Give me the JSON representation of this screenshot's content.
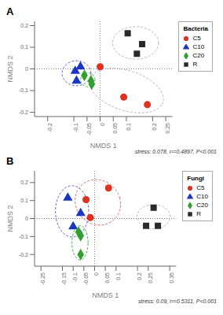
{
  "chart_data": [
    {
      "type": "scatter",
      "title": "A",
      "xlabel": "NMDS 1",
      "ylabel": "NMDS 2",
      "legend_title": "Bacteria",
      "annotations": [
        "stress: 0.078, r²=0.4897, P<0.001"
      ],
      "xlim": [
        -0.25,
        0.275
      ],
      "ylim": [
        -0.22,
        0.22
      ],
      "xticks": [
        -0.2,
        -0.1,
        -0.05,
        0,
        0.05,
        0.1,
        0.2,
        0.25
      ],
      "yticks": [
        -0.2,
        -0.1,
        0,
        0.1,
        0.2
      ],
      "series": [
        {
          "name": "C5",
          "color": "#e03020",
          "marker": "circle",
          "values": [
            [
              0.0,
              0.01
            ],
            [
              0.09,
              -0.13
            ],
            [
              0.18,
              -0.165
            ]
          ]
        },
        {
          "name": "C10",
          "color": "#1a35c0",
          "marker": "triangle",
          "values": [
            [
              -0.075,
              0.01
            ],
            [
              -0.095,
              -0.01
            ],
            [
              -0.09,
              -0.055
            ]
          ]
        },
        {
          "name": "C20",
          "color": "#30a030",
          "marker": "diamond",
          "values": [
            [
              -0.06,
              -0.03
            ],
            [
              -0.035,
              -0.055
            ],
            [
              -0.032,
              -0.07
            ]
          ]
        },
        {
          "name": "R",
          "color": "#2a2a2a",
          "marker": "square",
          "values": [
            [
              0.105,
              0.165
            ],
            [
              0.16,
              0.115
            ],
            [
              0.14,
              0.07
            ]
          ]
        }
      ],
      "ellipses": [
        {
          "cx": 0.1,
          "cy": -0.1,
          "width": 0.3,
          "height": 0.18,
          "angle": -25,
          "color": "#b8b8b8"
        },
        {
          "cx": -0.09,
          "cy": -0.02,
          "width": 0.11,
          "height": 0.115,
          "angle": 0,
          "color": "#6060d0"
        },
        {
          "cx": -0.047,
          "cy": -0.05,
          "width": 0.055,
          "height": 0.065,
          "angle": 0,
          "color": "#40a840"
        },
        {
          "cx": 0.135,
          "cy": 0.12,
          "width": 0.175,
          "height": 0.15,
          "angle": 0,
          "color": "#b8b8b8"
        }
      ]
    },
    {
      "type": "scatter",
      "title": "B",
      "xlabel": "NMDS 1",
      "ylabel": "NMDS 2",
      "legend_title": "Fungi",
      "annotations": [
        "stress: 0.09, r²=0.5311, P<0.001"
      ],
      "xlim": [
        -0.28,
        0.38
      ],
      "ylim": [
        -0.265,
        0.265
      ],
      "xticks": [
        -0.25,
        -0.15,
        -0.1,
        -0.05,
        0,
        0.05,
        0.1,
        0.2,
        0.25,
        0.35
      ],
      "yticks": [
        -0.2,
        -0.1,
        0,
        0.1,
        0.2
      ],
      "series": [
        {
          "name": "C5",
          "color": "#e03020",
          "marker": "circle",
          "values": [
            [
              -0.02,
              0.005
            ],
            [
              -0.04,
              0.105
            ],
            [
              0.065,
              0.17
            ]
          ]
        },
        {
          "name": "C10",
          "color": "#1a35c0",
          "marker": "triangle",
          "values": [
            [
              -0.125,
              0.115
            ],
            [
              -0.1,
              -0.045
            ],
            [
              -0.065,
              0.03
            ]
          ]
        },
        {
          "name": "C20",
          "color": "#30a030",
          "marker": "diamond",
          "values": [
            [
              -0.075,
              -0.075
            ],
            [
              -0.065,
              -0.095
            ],
            [
              -0.065,
              -0.2
            ]
          ]
        },
        {
          "name": "R",
          "color": "#2a2a2a",
          "marker": "square",
          "values": [
            [
              0.24,
              -0.04
            ],
            [
              0.295,
              -0.04
            ],
            [
              0.275,
              0.06
            ]
          ]
        }
      ],
      "ellipses": [
        {
          "cx": 0.015,
          "cy": 0.09,
          "width": 0.21,
          "height": 0.255,
          "angle": 12,
          "color": "#e07070"
        },
        {
          "cx": -0.105,
          "cy": 0.04,
          "width": 0.155,
          "height": 0.285,
          "angle": 0,
          "color": "#6060d0"
        },
        {
          "cx": -0.068,
          "cy": -0.135,
          "width": 0.075,
          "height": 0.19,
          "angle": 0,
          "color": "#40a840"
        },
        {
          "cx": 0.275,
          "cy": 0.01,
          "width": 0.155,
          "height": 0.135,
          "angle": 0,
          "color": "#b8b8b8"
        }
      ]
    }
  ]
}
